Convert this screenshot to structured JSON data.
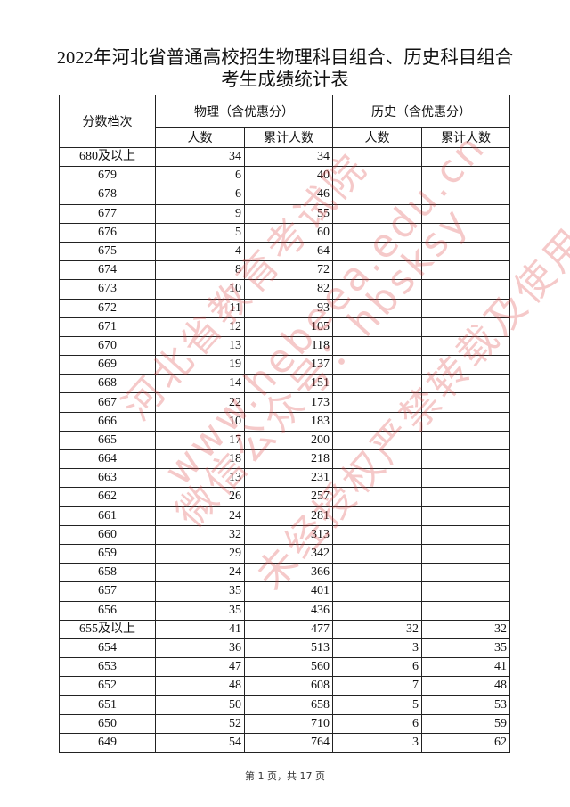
{
  "title_line1": "2022年河北省普通高校招生物理科目组合、历史科目组合",
  "title_line2": "考生成绩统计表",
  "headers": {
    "score": "分数档次",
    "physics": "物理（含优惠分）",
    "history": "历史（含优惠分）",
    "count": "人数",
    "cumulative": "累计人数"
  },
  "rows": [
    [
      "680及以上",
      "34",
      "34",
      "",
      ""
    ],
    [
      "679",
      "6",
      "40",
      "",
      ""
    ],
    [
      "678",
      "6",
      "46",
      "",
      ""
    ],
    [
      "677",
      "9",
      "55",
      "",
      ""
    ],
    [
      "676",
      "5",
      "60",
      "",
      ""
    ],
    [
      "675",
      "4",
      "64",
      "",
      ""
    ],
    [
      "674",
      "8",
      "72",
      "",
      ""
    ],
    [
      "673",
      "10",
      "82",
      "",
      ""
    ],
    [
      "672",
      "11",
      "93",
      "",
      ""
    ],
    [
      "671",
      "12",
      "105",
      "",
      ""
    ],
    [
      "670",
      "13",
      "118",
      "",
      ""
    ],
    [
      "669",
      "19",
      "137",
      "",
      ""
    ],
    [
      "668",
      "14",
      "151",
      "",
      ""
    ],
    [
      "667",
      "22",
      "173",
      "",
      ""
    ],
    [
      "666",
      "10",
      "183",
      "",
      ""
    ],
    [
      "665",
      "17",
      "200",
      "",
      ""
    ],
    [
      "664",
      "18",
      "218",
      "",
      ""
    ],
    [
      "663",
      "13",
      "231",
      "",
      ""
    ],
    [
      "662",
      "26",
      "257",
      "",
      ""
    ],
    [
      "661",
      "24",
      "281",
      "",
      ""
    ],
    [
      "660",
      "32",
      "313",
      "",
      ""
    ],
    [
      "659",
      "29",
      "342",
      "",
      ""
    ],
    [
      "658",
      "24",
      "366",
      "",
      ""
    ],
    [
      "657",
      "35",
      "401",
      "",
      ""
    ],
    [
      "656",
      "35",
      "436",
      "",
      ""
    ],
    [
      "655及以上",
      "41",
      "477",
      "32",
      "32"
    ],
    [
      "654",
      "36",
      "513",
      "3",
      "35"
    ],
    [
      "653",
      "47",
      "560",
      "6",
      "41"
    ],
    [
      "652",
      "48",
      "608",
      "7",
      "48"
    ],
    [
      "651",
      "50",
      "658",
      "5",
      "53"
    ],
    [
      "650",
      "52",
      "710",
      "6",
      "59"
    ],
    [
      "649",
      "54",
      "764",
      "3",
      "62"
    ]
  ],
  "footer": "第 1 页，共 17 页",
  "watermark": [
    "河北省教育考试院",
    "www.hebeea.edu.cn",
    "微信公众号：hbsksy",
    "未经授权严禁转载及使用"
  ],
  "watermark_color": "#dc3c3c"
}
